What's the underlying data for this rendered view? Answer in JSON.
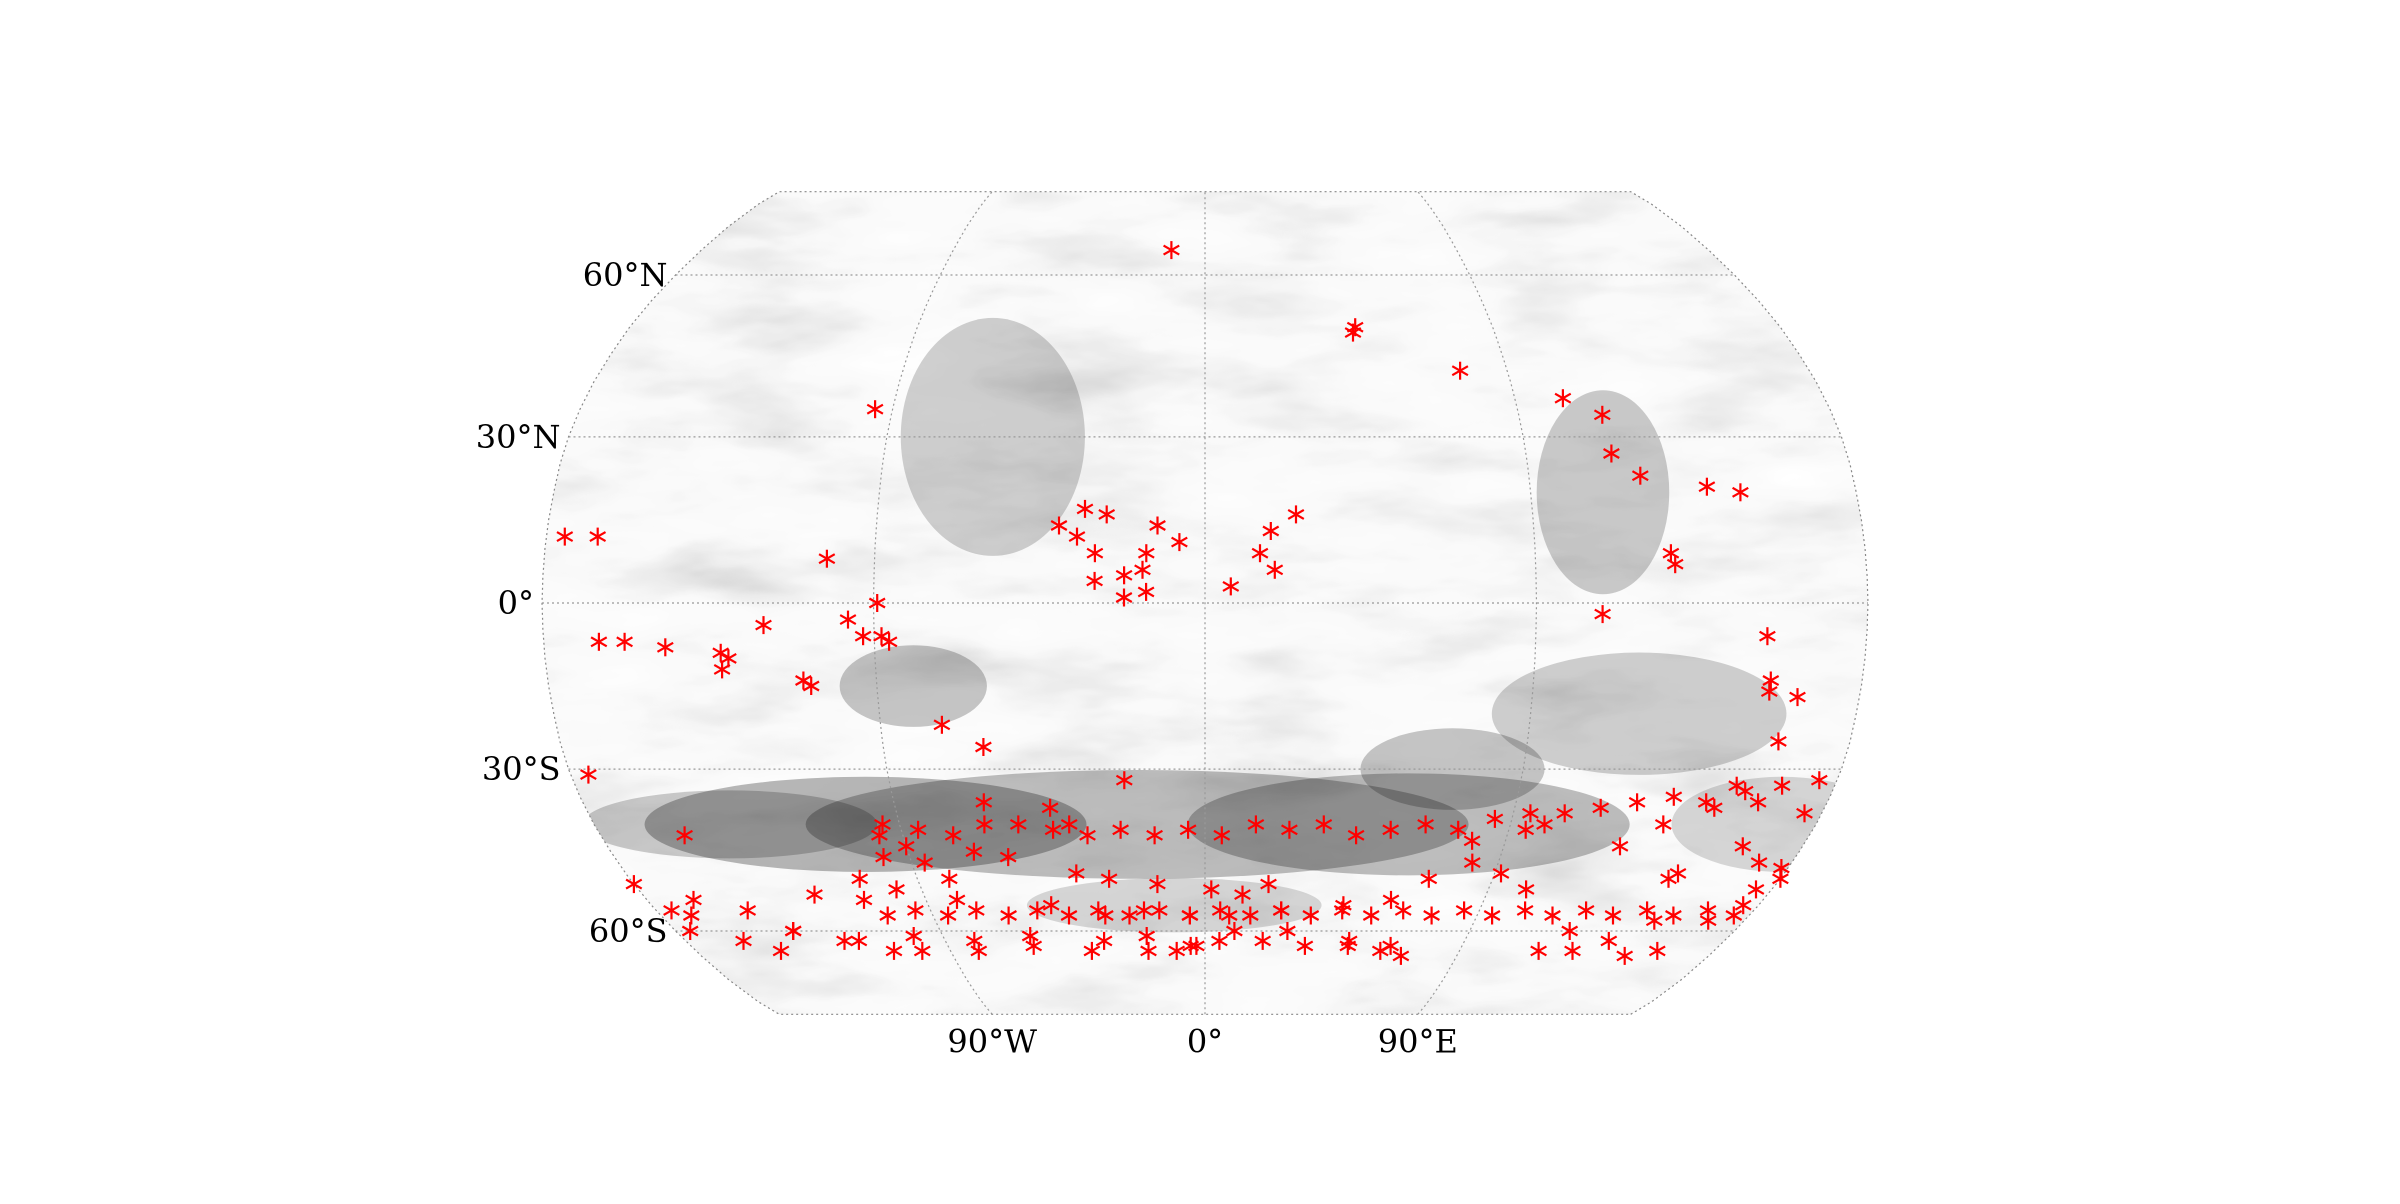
{
  "map": {
    "projection": "Robinson",
    "graticule": {
      "parallels_deg": [
        -60,
        -30,
        0,
        30,
        60
      ],
      "meridians_deg": [
        -90,
        0,
        90
      ],
      "line_style": "dotted",
      "line_color": "#999999"
    },
    "background": "grayscale surface texture (dark albedo regions)",
    "lat_labels": [
      {
        "lat": 60,
        "text": "60°N"
      },
      {
        "lat": 30,
        "text": "30°N"
      },
      {
        "lat": 0,
        "text": "0°"
      },
      {
        "lat": -30,
        "text": "30°S"
      },
      {
        "lat": -60,
        "text": "60°S"
      }
    ],
    "lon_labels": [
      {
        "lon": -90,
        "text": "90°W"
      },
      {
        "lon": 0,
        "text": "0°"
      },
      {
        "lon": 90,
        "text": "90°E"
      }
    ],
    "marker": {
      "symbol": "*",
      "color": "#ff0000"
    },
    "points_lonlat": [
      [
        -12,
        65
      ],
      [
        47,
        50
      ],
      [
        46,
        49
      ],
      [
        76,
        42
      ],
      [
        104,
        37
      ],
      [
        114,
        34
      ],
      [
        114,
        27
      ],
      [
        121,
        23
      ],
      [
        139,
        21
      ],
      [
        148,
        20
      ],
      [
        -166,
        12
      ],
      [
        -95,
        35
      ],
      [
        -103,
        8
      ],
      [
        -33,
        17
      ],
      [
        -27,
        16
      ],
      [
        -40,
        14
      ],
      [
        -35,
        12
      ],
      [
        -13,
        14
      ],
      [
        -7,
        11
      ],
      [
        -16,
        9
      ],
      [
        -30,
        9
      ],
      [
        -17,
        6
      ],
      [
        -22,
        5
      ],
      [
        -30,
        4
      ],
      [
        -22,
        1
      ],
      [
        -16,
        2
      ],
      [
        25,
        16
      ],
      [
        18,
        13
      ],
      [
        15,
        9
      ],
      [
        19,
        6
      ],
      [
        7,
        3
      ],
      [
        127,
        9
      ],
      [
        128,
        7
      ],
      [
        108,
        -2
      ],
      [
        -89,
        0
      ],
      [
        -120,
        -4
      ],
      [
        -97,
        -3
      ],
      [
        -88,
        -6
      ],
      [
        -93,
        -6
      ],
      [
        -86,
        -7
      ],
      [
        -158,
        -7
      ],
      [
        -147,
        -8
      ],
      [
        -130,
        -10
      ],
      [
        -132,
        -12
      ],
      [
        -132,
        -9
      ],
      [
        -110,
        -14
      ],
      [
        -108,
        -15
      ],
      [
        -73,
        -22
      ],
      [
        -62,
        -26
      ],
      [
        -23,
        -32
      ],
      [
        -64,
        -36
      ],
      [
        -45,
        -37
      ],
      [
        -40,
        -40
      ],
      [
        -155,
        -42
      ],
      [
        -97,
        -42
      ],
      [
        -90,
        -44
      ],
      [
        -98,
        -46
      ],
      [
        -86,
        -47
      ],
      [
        -60,
        -46
      ],
      [
        -70,
        -45
      ],
      [
        -108,
        -50
      ],
      [
        -80,
        -50
      ],
      [
        -40,
        -49
      ],
      [
        -30,
        -50
      ],
      [
        -15,
        -51
      ],
      [
        2,
        -52
      ],
      [
        12,
        -53
      ],
      [
        20,
        -51
      ],
      [
        -180,
        -51
      ],
      [
        -165,
        -54
      ],
      [
        -150,
        -56
      ],
      [
        -125,
        -53
      ],
      [
        -110,
        -54
      ],
      [
        -98,
        -52
      ],
      [
        -80,
        -54
      ],
      [
        -50,
        -55
      ],
      [
        -33,
        -57
      ],
      [
        -20,
        -56
      ],
      [
        -5,
        -57
      ],
      [
        8,
        -57
      ],
      [
        25,
        -56
      ],
      [
        45,
        -55
      ],
      [
        60,
        -54
      ],
      [
        70,
        -50
      ],
      [
        82,
        -47
      ],
      [
        92,
        -49
      ],
      [
        80,
        -43
      ],
      [
        95,
        -41
      ],
      [
        100,
        -40
      ],
      [
        -5,
        -63
      ],
      [
        -20,
        -61
      ],
      [
        -35,
        -62
      ],
      [
        -60,
        -61
      ],
      [
        -80,
        -62
      ],
      [
        -100,
        -61
      ],
      [
        -120,
        -62
      ],
      [
        -140,
        -60
      ],
      [
        -160,
        -62
      ],
      [
        -175,
        -60
      ],
      [
        10,
        -60
      ],
      [
        28,
        -60
      ],
      [
        50,
        -62
      ],
      [
        65,
        -63
      ],
      [
        102,
        -52
      ],
      [
        125,
        -44
      ],
      [
        135,
        -40
      ],
      [
        145,
        -50
      ],
      [
        147,
        -49
      ],
      [
        -110,
        -64
      ],
      [
        -150,
        -64
      ],
      [
        -140,
        -60
      ],
      [
        -125,
        -62
      ],
      [
        -100,
        -64
      ],
      [
        -80,
        -64
      ],
      [
        -60,
        -63
      ],
      [
        -40,
        -64
      ],
      [
        -20,
        -64
      ],
      [
        -10,
        -64
      ],
      [
        -3,
        -63
      ],
      [
        5,
        -62
      ],
      [
        20,
        -62
      ],
      [
        35,
        -63
      ],
      [
        50,
        -63
      ],
      [
        62,
        -64
      ],
      [
        70,
        -65
      ],
      [
        175,
        -55
      ],
      [
        168,
        -58
      ],
      [
        180,
        -50
      ],
      [
        160,
        -64
      ],
      [
        150,
        -65
      ],
      [
        140,
        -62
      ],
      [
        130,
        -64
      ],
      [
        118,
        -64
      ],
      [
        175,
        -52
      ],
      [
        178,
        -48
      ],
      [
        170,
        -47
      ],
      [
        162,
        -44
      ],
      [
        150,
        -58
      ],
      [
        148,
        -37
      ],
      [
        152,
        -33
      ],
      [
        160,
        -36
      ],
      [
        175,
        -38
      ],
      [
        185,
        12
      ],
      [
        195,
        -7
      ],
      [
        153,
        -6
      ],
      [
        155,
        -16
      ],
      [
        155,
        -14
      ],
      [
        163,
        -17
      ],
      [
        160,
        -25
      ],
      [
        124,
        -60
      ],
      [
        -95,
        -40
      ],
      [
        -85,
        -41
      ],
      [
        -75,
        -42
      ],
      [
        -65,
        -40
      ],
      [
        -55,
        -40
      ],
      [
        -45,
        -41
      ],
      [
        -35,
        -42
      ],
      [
        -25,
        -41
      ],
      [
        -15,
        -42
      ],
      [
        -5,
        -41
      ],
      [
        5,
        -42
      ],
      [
        15,
        -40
      ],
      [
        25,
        -41
      ],
      [
        35,
        -40
      ],
      [
        45,
        -42
      ],
      [
        55,
        -41
      ],
      [
        65,
        -40
      ],
      [
        75,
        -41
      ],
      [
        85,
        -39
      ],
      [
        95,
        -38
      ],
      [
        105,
        -38
      ],
      [
        115,
        -37
      ],
      [
        125,
        -36
      ],
      [
        135,
        -35
      ],
      [
        145,
        -36
      ],
      [
        155,
        -34
      ],
      [
        165,
        -33
      ],
      [
        175,
        -32
      ],
      [
        185,
        -31
      ],
      [
        -105,
        -57
      ],
      [
        -95,
        -56
      ],
      [
        -85,
        -57
      ],
      [
        -75,
        -56
      ],
      [
        -65,
        -57
      ],
      [
        -55,
        -56
      ],
      [
        -45,
        -57
      ],
      [
        -35,
        -56
      ],
      [
        -25,
        -57
      ],
      [
        -15,
        -56
      ],
      [
        -5,
        -57
      ],
      [
        5,
        -56
      ],
      [
        15,
        -57
      ],
      [
        25,
        -56
      ],
      [
        35,
        -57
      ],
      [
        45,
        -56
      ],
      [
        55,
        -57
      ],
      [
        65,
        -56
      ],
      [
        75,
        -57
      ],
      [
        85,
        -56
      ],
      [
        95,
        -57
      ],
      [
        105,
        -56
      ],
      [
        115,
        -57
      ],
      [
        125,
        -56
      ],
      [
        135,
        -57
      ],
      [
        145,
        -56
      ],
      [
        155,
        -57
      ],
      [
        165,
        -56
      ],
      [
        175,
        -57
      ],
      [
        185,
        -56
      ],
      [
        -170,
        -57
      ]
    ]
  }
}
